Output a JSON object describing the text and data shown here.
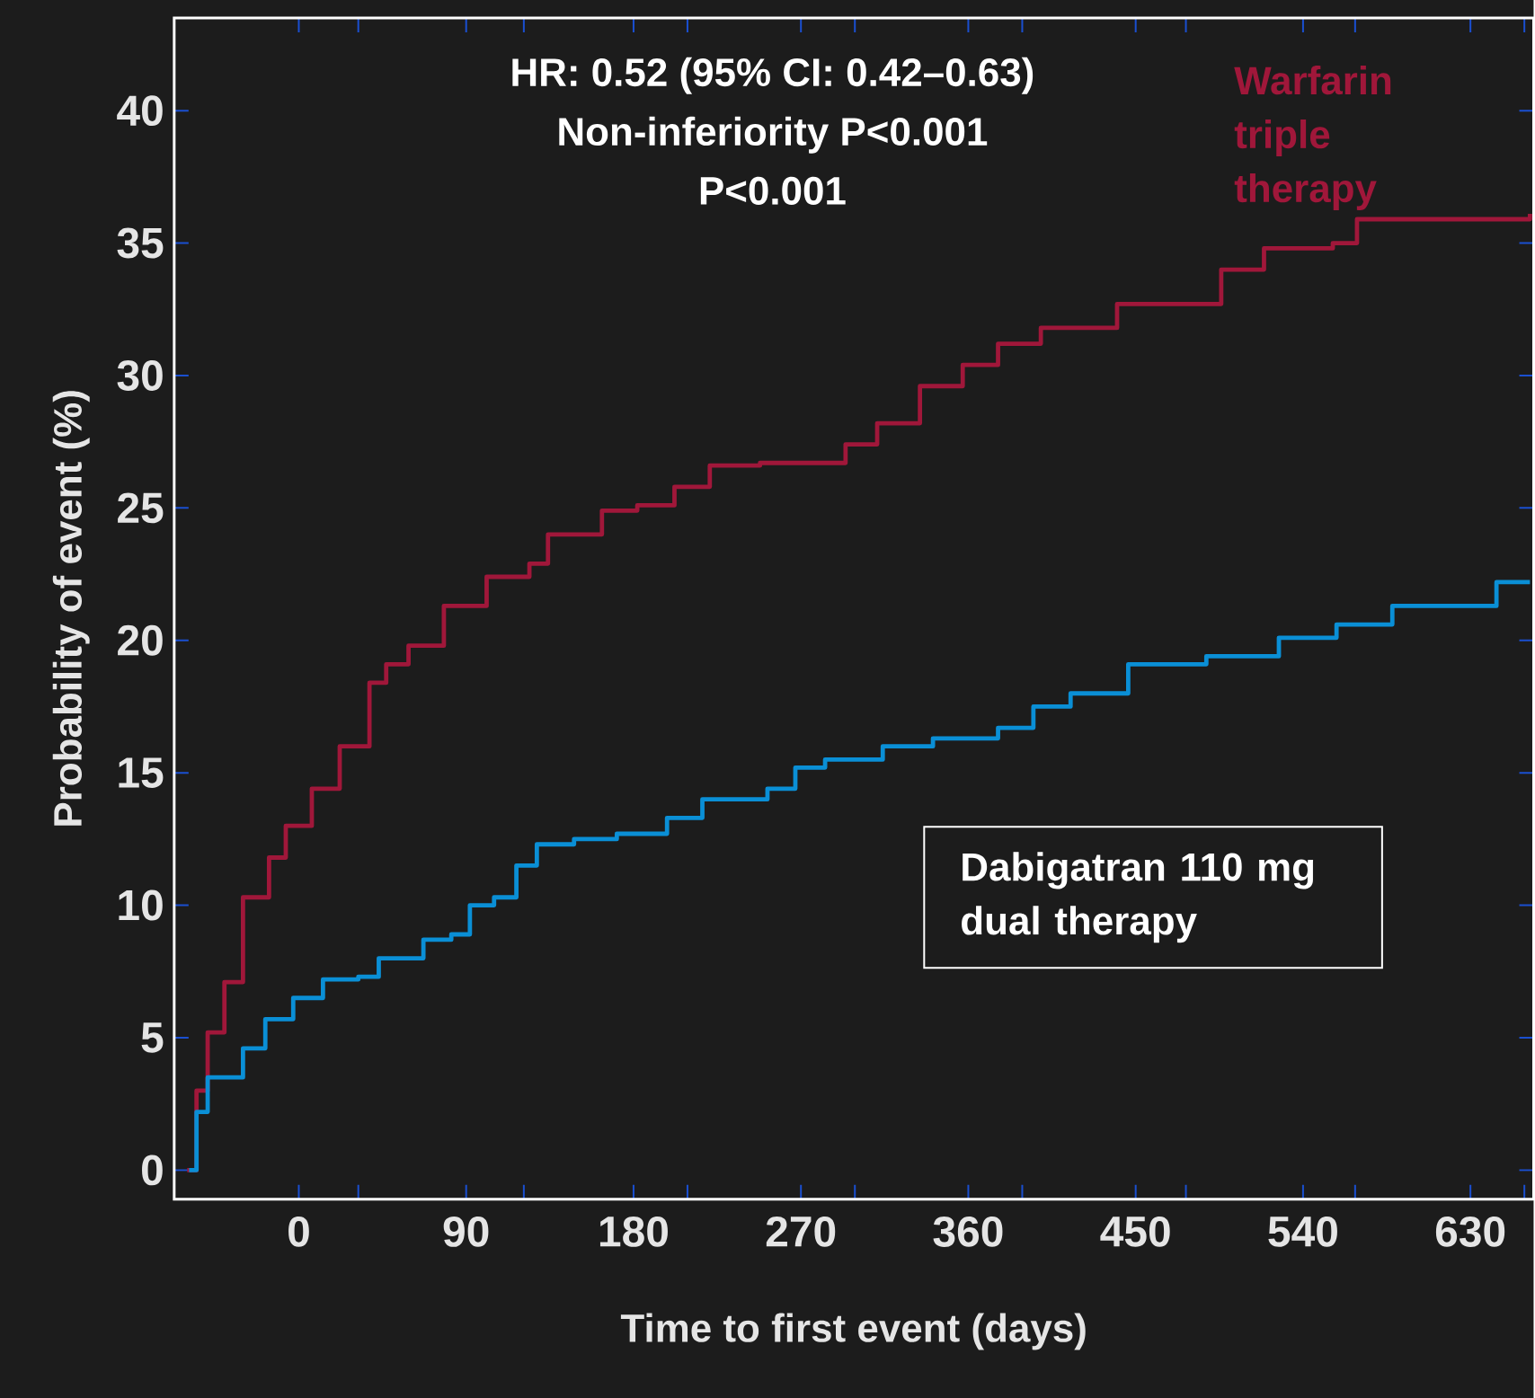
{
  "chart_data": {
    "type": "step",
    "xlabel": "Time to first event (days)",
    "ylabel": "Probability of event (%)",
    "annotations": [
      "HR: 0.52 (95% CI: 0.42–0.63)",
      "Non-inferiority P<0.001",
      "P<0.001"
    ],
    "xlim": [
      -67,
      664
    ],
    "ylim": [
      -1.1,
      43.5
    ],
    "xticks": [
      0,
      90,
      180,
      270,
      360,
      450,
      540,
      630,
      {
        "value": 32,
        "label": null
      },
      {
        "value": 121,
        "label": null
      },
      {
        "value": 209,
        "label": null
      },
      {
        "value": 299,
        "label": null
      },
      {
        "value": 389,
        "label": null
      },
      {
        "value": 477,
        "label": null
      },
      {
        "value": 568,
        "label": null
      },
      {
        "value": 659,
        "label": null
      }
    ],
    "yticks": [
      0,
      5,
      10,
      15,
      20,
      25,
      30,
      35,
      40
    ],
    "series": [
      {
        "name": "Warfarin triple therapy",
        "color": "#a0173a",
        "x": [
          -60,
          -55,
          -49,
          -40,
          -30,
          -16,
          -7,
          7,
          22,
          38,
          47,
          59,
          78,
          101,
          124,
          134,
          163,
          182,
          202,
          221,
          248,
          294,
          311,
          334,
          357,
          376,
          399,
          430,
          440,
          486,
          496,
          519,
          556,
          569,
          662
        ],
        "values": [
          0,
          3.0,
          5.2,
          7.1,
          10.3,
          11.8,
          13.0,
          14.4,
          16.0,
          18.4,
          19.1,
          19.8,
          21.3,
          22.4,
          22.9,
          24.0,
          24.9,
          25.1,
          25.8,
          26.6,
          26.7,
          27.4,
          28.2,
          29.6,
          30.4,
          31.2,
          31.8,
          31.8,
          32.7,
          32.7,
          34.0,
          34.8,
          35.0,
          35.9,
          36.1
        ]
      },
      {
        "name": "Dabigatran 110 mg dual therapy",
        "color": "#0a8fd6",
        "x": [
          -59,
          -55,
          -49,
          -40,
          -30,
          -18,
          -3,
          13,
          32,
          43,
          59,
          67,
          82,
          92,
          105,
          117,
          128,
          148,
          171,
          190,
          198,
          217,
          252,
          267,
          283,
          314,
          341,
          376,
          395,
          415,
          446,
          488,
          527,
          558,
          588,
          644,
          662
        ],
        "values": [
          0,
          2.2,
          3.5,
          3.5,
          4.6,
          5.7,
          6.5,
          7.2,
          7.3,
          8.0,
          8.0,
          8.7,
          8.9,
          10.0,
          10.3,
          11.5,
          12.3,
          12.5,
          12.7,
          12.7,
          13.3,
          14.0,
          14.4,
          15.2,
          15.5,
          16.0,
          16.3,
          16.7,
          17.5,
          18.0,
          19.1,
          19.4,
          20.1,
          20.6,
          21.3,
          22.2,
          22.2
        ]
      }
    ]
  }
}
